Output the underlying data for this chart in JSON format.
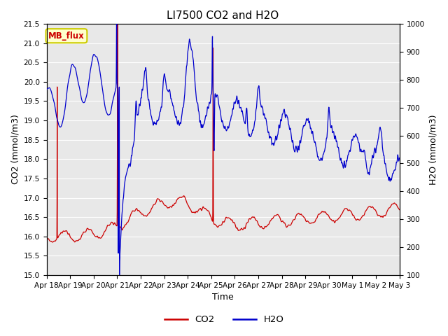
{
  "title": "LI7500 CO2 and H2O",
  "xlabel": "Time",
  "ylabel_left": "CO2 (mmol/m3)",
  "ylabel_right": "H2O (mmol/m3)",
  "ylim_left": [
    15.0,
    21.5
  ],
  "ylim_right": [
    100,
    1000
  ],
  "yticks_left": [
    15.0,
    15.5,
    16.0,
    16.5,
    17.0,
    17.5,
    18.0,
    18.5,
    19.0,
    19.5,
    20.0,
    20.5,
    21.0,
    21.5
  ],
  "yticks_right": [
    100,
    200,
    300,
    400,
    500,
    600,
    700,
    800,
    900,
    1000
  ],
  "xtick_labels": [
    "Apr 18",
    "Apr 19",
    "Apr 20",
    "Apr 21",
    "Apr 22",
    "Apr 23",
    "Apr 24",
    "Apr 25",
    "Apr 26",
    "Apr 27",
    "Apr 28",
    "Apr 29",
    "Apr 30",
    "May 1",
    "May 2",
    "May 3"
  ],
  "co2_color": "#cc0000",
  "h2o_color": "#0000cc",
  "fig_bg_color": "#ffffff",
  "plot_bg_color": "#e8e8e8",
  "grid_color": "#ffffff",
  "annotation_text": "MB_flux",
  "annotation_bg": "#ffffcc",
  "annotation_border": "#cccc00",
  "legend_co2": "CO2",
  "legend_h2o": "H2O",
  "title_fontsize": 11,
  "axis_fontsize": 9,
  "tick_fontsize": 7.5,
  "linewidth": 0.9
}
